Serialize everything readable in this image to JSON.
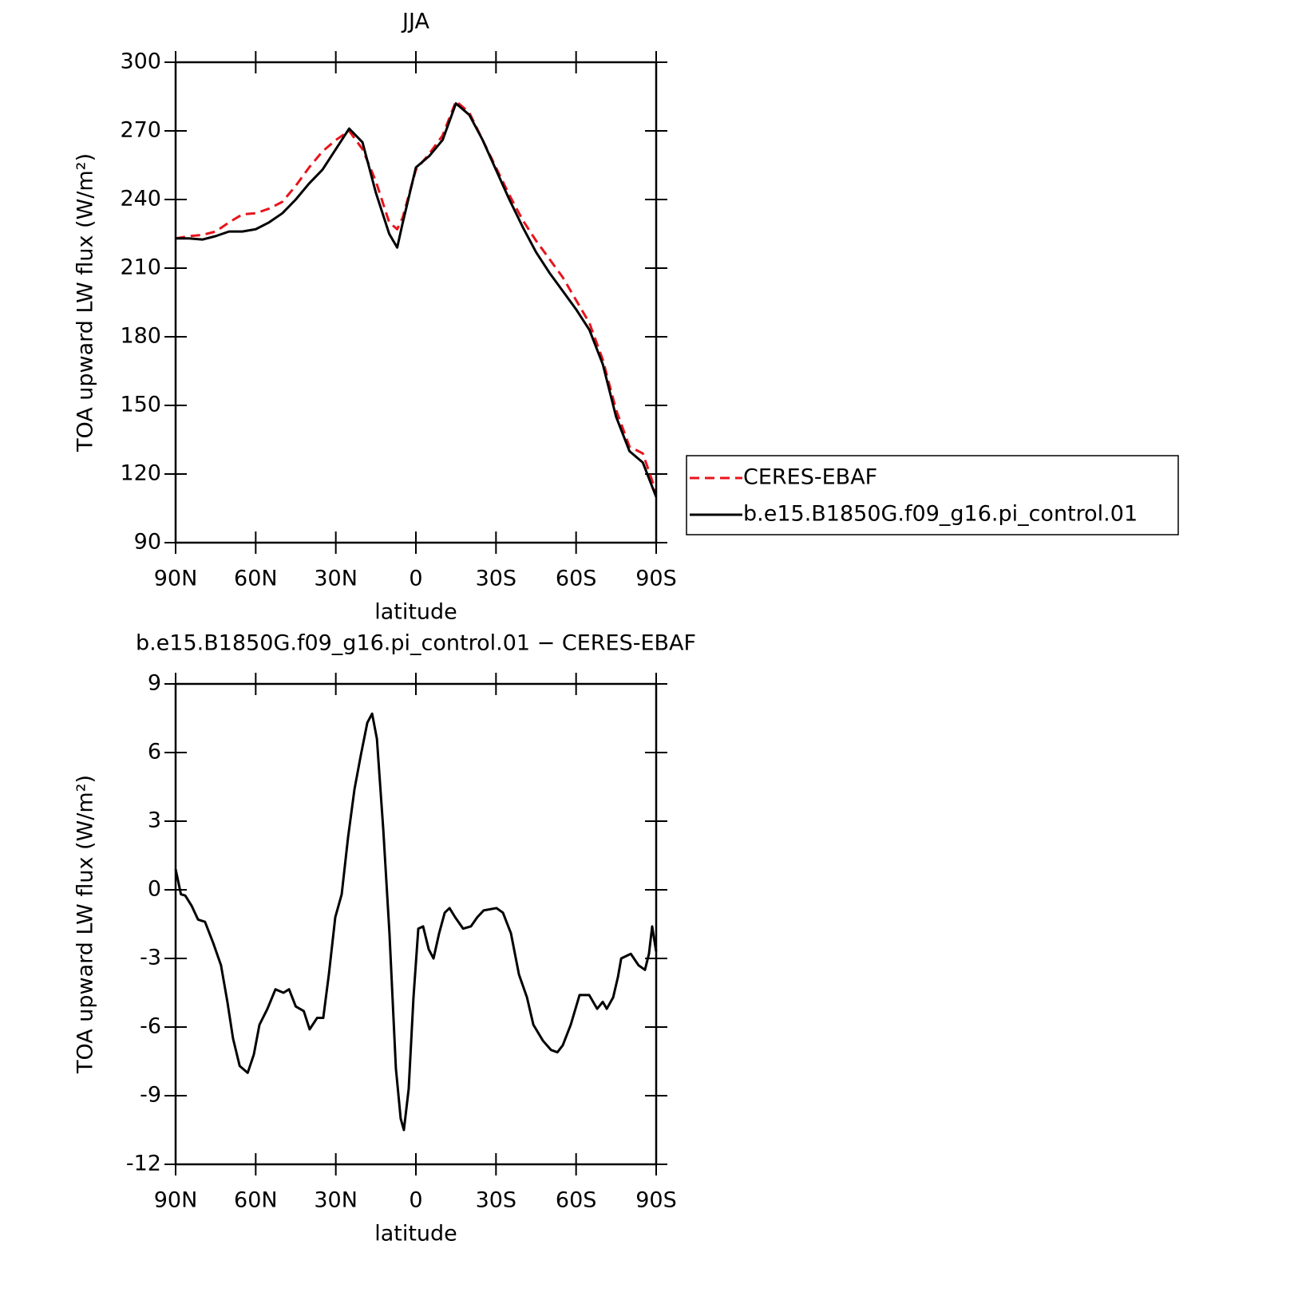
{
  "chart_data": [
    {
      "type": "line",
      "title": "JJA",
      "xlabel": "latitude",
      "ylabel": "TOA upward LW flux (W/m²)",
      "x": [
        90,
        85,
        80,
        75,
        70,
        65,
        60,
        55,
        50,
        45,
        40,
        35,
        30,
        25,
        20,
        15,
        10,
        7,
        5,
        0,
        -5,
        -10,
        -15,
        -20,
        -25,
        -30,
        -35,
        -40,
        -45,
        -50,
        -55,
        -60,
        -65,
        -70,
        -75,
        -80,
        -85,
        -90
      ],
      "series": [
        {
          "name": "CERES-EBAF",
          "color": "#e8141c",
          "dash": true,
          "values": [
            223,
            224,
            224.5,
            226,
            230,
            233.5,
            234,
            236,
            239,
            246,
            254,
            261,
            266,
            270,
            262,
            248,
            230,
            227,
            232,
            253,
            260,
            268,
            283,
            278,
            266,
            254,
            242,
            231,
            222,
            214,
            206,
            196,
            186,
            170,
            148,
            132,
            129,
            112
          ]
        },
        {
          "name": "b.e15.B1850G.f09_g16.pi_control.01",
          "color": "#000000",
          "dash": false,
          "values": [
            223,
            223,
            222.5,
            224,
            226,
            226,
            227,
            230,
            234,
            240,
            247,
            253,
            262,
            271,
            265,
            243,
            225,
            219,
            229.5,
            254,
            259,
            266,
            282,
            277,
            266,
            253,
            240,
            228,
            217,
            208,
            200,
            192,
            183,
            168,
            145,
            130,
            125,
            110
          ]
        }
      ],
      "xlim": [
        90,
        -90
      ],
      "xticks": [
        {
          "value": 90,
          "label": "90N"
        },
        {
          "value": 60,
          "label": "60N"
        },
        {
          "value": 30,
          "label": "30N"
        },
        0,
        {
          "value": -30,
          "label": "30S"
        },
        {
          "value": -60,
          "label": "60S"
        },
        {
          "value": -90,
          "label": "90S"
        }
      ],
      "ylim": [
        90,
        300
      ],
      "yticks": [
        90,
        120,
        150,
        180,
        210,
        240,
        270,
        300
      ],
      "grid": false
    },
    {
      "type": "line",
      "title": "b.e15.B1850G.f09_g16.pi_control.01 − CERES-EBAF",
      "xlabel": "latitude",
      "ylabel": "TOA upward LW flux (W/m²)",
      "x": [
        90,
        88,
        86.4,
        84,
        81.6,
        79,
        76,
        73,
        70.6,
        68.5,
        66,
        63,
        60.7,
        58.6,
        55.6,
        52.6,
        49.6,
        47.5,
        45,
        42,
        39.8,
        37,
        34.7,
        32.6,
        30.2,
        27.8,
        25.4,
        23,
        20.6,
        18.2,
        16.4,
        14.6,
        12.2,
        9.9,
        7.5,
        5.7,
        4.5,
        2.7,
        0.9,
        -0.9,
        -2.7,
        -4.8,
        -6.6,
        -8.7,
        -10.8,
        -12.6,
        -14.7,
        -17.7,
        -20.6,
        -23,
        -25.4,
        -27.8,
        -30.2,
        -32.6,
        -35.6,
        -38.6,
        -41.6,
        -44,
        -47.6,
        -50.6,
        -53,
        -55,
        -58,
        -61.3,
        -64.9,
        -67.9,
        -70,
        -71.5,
        -73.9,
        -75.7,
        -76.9,
        -80.5,
        -83.4,
        -85.8,
        -87.3,
        -88.5,
        -90
      ],
      "color": "#000000",
      "values": [
        0.9,
        -0.2,
        -0.25,
        -0.7,
        -1.3,
        -1.4,
        -2.3,
        -3.3,
        -4.9,
        -6.5,
        -7.7,
        -8.0,
        -7.2,
        -5.9,
        -5.2,
        -4.35,
        -4.5,
        -4.35,
        -5.1,
        -5.3,
        -6.1,
        -5.6,
        -5.6,
        -3.7,
        -1.2,
        -0.2,
        2.3,
        4.4,
        5.9,
        7.3,
        7.7,
        6.6,
        2.6,
        -1.9,
        -7.8,
        -10.0,
        -10.5,
        -8.7,
        -4.7,
        -1.7,
        -1.6,
        -2.6,
        -3.0,
        -1.9,
        -1.0,
        -0.8,
        -1.2,
        -1.7,
        -1.6,
        -1.2,
        -0.9,
        -0.85,
        -0.8,
        -1.0,
        -1.9,
        -3.7,
        -4.7,
        -5.9,
        -6.6,
        -7.0,
        -7.1,
        -6.8,
        -5.9,
        -4.6,
        -4.6,
        -5.2,
        -4.9,
        -5.2,
        -4.7,
        -3.8,
        -3.0,
        -2.8,
        -3.3,
        -3.5,
        -2.8,
        -1.6,
        -2.7
      ],
      "xlim": [
        90,
        -90
      ],
      "xticks": [
        {
          "value": 90,
          "label": "90N"
        },
        {
          "value": 60,
          "label": "60N"
        },
        {
          "value": 30,
          "label": "30N"
        },
        0,
        {
          "value": -30,
          "label": "30S"
        },
        {
          "value": -60,
          "label": "60S"
        },
        {
          "value": -90,
          "label": "90S"
        }
      ],
      "ylim": [
        -12,
        9
      ],
      "yticks": [
        -12,
        -9,
        -6,
        -3,
        0,
        3,
        6,
        9
      ],
      "grid": false
    }
  ]
}
